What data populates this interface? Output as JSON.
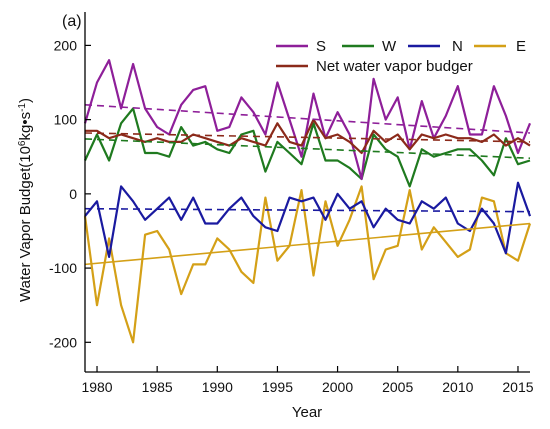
{
  "chart_data": {
    "type": "line",
    "panel_label": "(a)",
    "xlabel": "Year",
    "ylabel_main": "Water Vapor Budget(10",
    "ylabel_sup": "6",
    "ylabel_units": "kg•s",
    "ylabel_sup2": "-1",
    "ylabel_close": ")",
    "xlim": [
      1979,
      2016
    ],
    "ylim": [
      -240,
      245
    ],
    "xticks": [
      "1980",
      "1985",
      "1990",
      "1995",
      "2000",
      "2005",
      "2010",
      "2015"
    ],
    "yticks": [
      "200",
      "100",
      "0",
      "-100",
      "-200"
    ],
    "ytick_values": [
      200,
      100,
      0,
      -100,
      -200
    ],
    "xtick_values": [
      1980,
      1985,
      1990,
      1995,
      2000,
      2005,
      2010,
      2015
    ],
    "x": [
      1979,
      1980,
      1981,
      1982,
      1983,
      1984,
      1985,
      1986,
      1987,
      1988,
      1989,
      1990,
      1991,
      1992,
      1993,
      1994,
      1995,
      1996,
      1997,
      1998,
      1999,
      2000,
      2001,
      2002,
      2003,
      2004,
      2005,
      2006,
      2007,
      2008,
      2009,
      2010,
      2011,
      2012,
      2013,
      2014,
      2015,
      2016
    ],
    "series": [
      {
        "name": "S",
        "color": "#8e1f99",
        "values": [
          95,
          150,
          180,
          115,
          175,
          115,
          90,
          80,
          120,
          140,
          145,
          85,
          90,
          130,
          110,
          80,
          150,
          100,
          50,
          135,
          75,
          110,
          80,
          20,
          155,
          100,
          130,
          60,
          125,
          75,
          105,
          145,
          80,
          80,
          145,
          105,
          55,
          95
        ],
        "trend": [
          120,
          82
        ]
      },
      {
        "name": "W",
        "color": "#1f7a1f",
        "values": [
          45,
          80,
          45,
          95,
          115,
          55,
          55,
          50,
          90,
          65,
          70,
          60,
          55,
          80,
          85,
          30,
          70,
          55,
          40,
          95,
          45,
          45,
          35,
          20,
          80,
          60,
          50,
          10,
          60,
          50,
          55,
          60,
          60,
          45,
          25,
          75,
          40,
          45
        ],
        "trend": [
          74,
          48
        ]
      },
      {
        "name": "N",
        "color": "#1a1aa0",
        "values": [
          -30,
          -10,
          -85,
          10,
          -10,
          -35,
          -20,
          -5,
          -35,
          -5,
          -40,
          -40,
          -20,
          -5,
          -30,
          -45,
          -50,
          -5,
          -10,
          -5,
          -35,
          0,
          -20,
          -10,
          -45,
          -20,
          -35,
          -40,
          -10,
          -20,
          -5,
          -40,
          -50,
          -20,
          -40,
          -80,
          15,
          -30
        ],
        "trend": [
          -20,
          -24
        ]
      },
      {
        "name": "E",
        "color": "#d4a017",
        "values": [
          -30,
          -150,
          -60,
          -150,
          -200,
          -55,
          -50,
          -75,
          -135,
          -95,
          -95,
          -60,
          -75,
          -105,
          -120,
          -5,
          -90,
          -70,
          5,
          -110,
          -10,
          -70,
          -35,
          10,
          -115,
          -75,
          -70,
          5,
          -75,
          -45,
          -65,
          -85,
          -75,
          -5,
          -10,
          -80,
          -90,
          -40
        ],
        "trend": [
          -95,
          -40
        ]
      },
      {
        "name": "Net water vapor budger",
        "color": "#8b2a1a",
        "values": [
          85,
          85,
          75,
          80,
          75,
          70,
          75,
          70,
          70,
          80,
          75,
          70,
          65,
          75,
          70,
          65,
          95,
          70,
          65,
          100,
          75,
          80,
          70,
          55,
          85,
          70,
          80,
          60,
          80,
          75,
          80,
          75,
          75,
          70,
          80,
          65,
          75,
          65
        ],
        "trend": [
          82,
          70
        ]
      }
    ],
    "legend": {
      "placement": "top-right",
      "items": [
        "S",
        "W",
        "N",
        "E",
        "Net water vapor budger"
      ]
    },
    "grid": false
  }
}
